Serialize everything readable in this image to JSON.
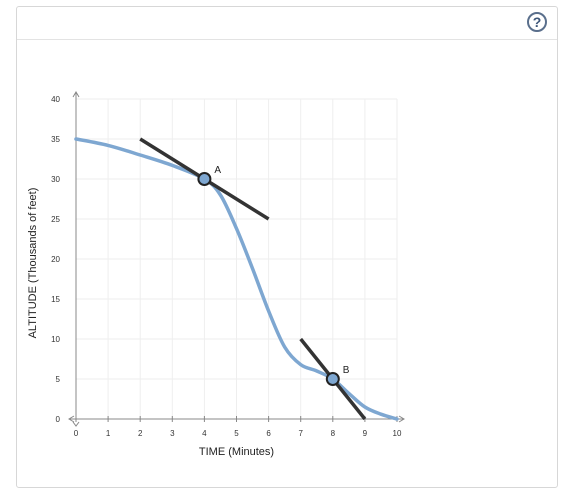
{
  "help": {
    "label": "?",
    "icon": "help-icon"
  },
  "chart_data": {
    "type": "line",
    "xlabel": "TIME (Minutes)",
    "ylabel": "ALTITUDE (Thousands of feet)",
    "xlim": [
      0,
      10
    ],
    "ylim": [
      0,
      40
    ],
    "x_ticks": [
      "0",
      "1",
      "2",
      "3",
      "4",
      "5",
      "6",
      "7",
      "8",
      "9",
      "10"
    ],
    "y_ticks": [
      "0",
      "5",
      "10",
      "15",
      "20",
      "25",
      "30",
      "35",
      "40"
    ],
    "grid": true,
    "series": [
      {
        "x": [
          0,
          1,
          2,
          3,
          4,
          4.5,
          5,
          5.5,
          6,
          6.5,
          7,
          7.5,
          8,
          8.5,
          9,
          9.5,
          10
        ],
        "y": [
          35,
          34.2,
          33,
          31.7,
          30,
          28,
          23.8,
          18.8,
          13.5,
          9,
          6.8,
          6,
          5,
          3.2,
          1.5,
          0.6,
          0
        ],
        "color": "#7ea7d1"
      }
    ],
    "tangent_lines": [
      {
        "x": [
          2,
          6
        ],
        "y": [
          35,
          25
        ],
        "color": "#333333"
      },
      {
        "x": [
          7,
          9
        ],
        "y": [
          10,
          0
        ],
        "color": "#333333"
      }
    ],
    "points": [
      {
        "label": "A",
        "x": 4,
        "y": 30
      },
      {
        "label": "B",
        "x": 8,
        "y": 5
      }
    ]
  }
}
